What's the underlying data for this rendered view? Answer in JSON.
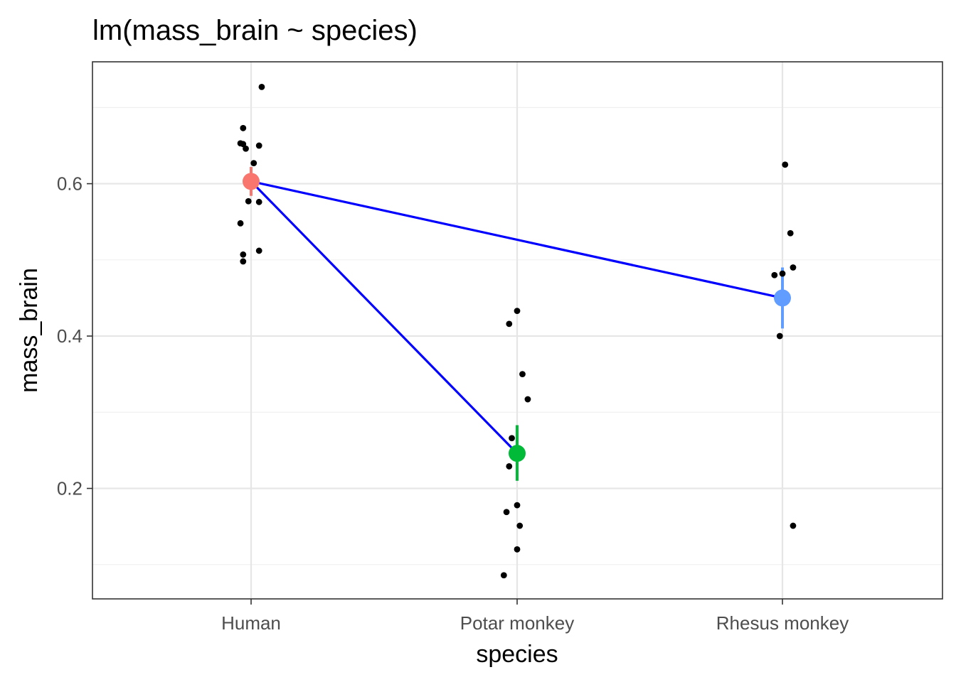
{
  "chart_data": {
    "type": "scatter",
    "title": "lm(mass_brain ~ species)",
    "xlabel": "species",
    "ylabel": "mass_brain",
    "categories": [
      "Human",
      "Potar monkey",
      "Rhesus monkey"
    ],
    "ylim": [
      0.055,
      0.76
    ],
    "yticks": [
      0.2,
      0.4,
      0.6
    ],
    "ytick_labels": [
      "0.2",
      "0.4",
      "0.6"
    ],
    "grid": true,
    "theme": "bw",
    "colors": {
      "Human": "#F8766D",
      "Potar monkey": "#00BA38",
      "Rhesus monkey": "#619CFF",
      "line": "#0000FF",
      "points": "#000000"
    },
    "observations": [
      {
        "category": "Human",
        "jitter": 0.04,
        "y": 0.727
      },
      {
        "category": "Human",
        "jitter": -0.03,
        "y": 0.673
      },
      {
        "category": "Human",
        "jitter": -0.04,
        "y": 0.653
      },
      {
        "category": "Human",
        "jitter": -0.03,
        "y": 0.652
      },
      {
        "category": "Human",
        "jitter": -0.02,
        "y": 0.646
      },
      {
        "category": "Human",
        "jitter": 0.03,
        "y": 0.65
      },
      {
        "category": "Human",
        "jitter": 0.01,
        "y": 0.627
      },
      {
        "category": "Human",
        "jitter": -0.01,
        "y": 0.577
      },
      {
        "category": "Human",
        "jitter": 0.03,
        "y": 0.576
      },
      {
        "category": "Human",
        "jitter": -0.04,
        "y": 0.548
      },
      {
        "category": "Human",
        "jitter": 0.03,
        "y": 0.512
      },
      {
        "category": "Human",
        "jitter": -0.03,
        "y": 0.507
      },
      {
        "category": "Human",
        "jitter": -0.03,
        "y": 0.498
      },
      {
        "category": "Potar monkey",
        "jitter": 0.0,
        "y": 0.433
      },
      {
        "category": "Potar monkey",
        "jitter": -0.03,
        "y": 0.416
      },
      {
        "category": "Potar monkey",
        "jitter": 0.02,
        "y": 0.35
      },
      {
        "category": "Potar monkey",
        "jitter": 0.04,
        "y": 0.317
      },
      {
        "category": "Potar monkey",
        "jitter": -0.02,
        "y": 0.266
      },
      {
        "category": "Potar monkey",
        "jitter": -0.03,
        "y": 0.229
      },
      {
        "category": "Potar monkey",
        "jitter": 0.0,
        "y": 0.178
      },
      {
        "category": "Potar monkey",
        "jitter": -0.04,
        "y": 0.169
      },
      {
        "category": "Potar monkey",
        "jitter": 0.01,
        "y": 0.151
      },
      {
        "category": "Potar monkey",
        "jitter": 0.0,
        "y": 0.12
      },
      {
        "category": "Potar monkey",
        "jitter": -0.05,
        "y": 0.086
      },
      {
        "category": "Rhesus monkey",
        "jitter": 0.01,
        "y": 0.625
      },
      {
        "category": "Rhesus monkey",
        "jitter": 0.03,
        "y": 0.535
      },
      {
        "category": "Rhesus monkey",
        "jitter": 0.04,
        "y": 0.49
      },
      {
        "category": "Rhesus monkey",
        "jitter": -0.03,
        "y": 0.48
      },
      {
        "category": "Rhesus monkey",
        "jitter": 0.0,
        "y": 0.482
      },
      {
        "category": "Rhesus monkey",
        "jitter": -0.01,
        "y": 0.4
      },
      {
        "category": "Rhesus monkey",
        "jitter": 0.04,
        "y": 0.151
      }
    ],
    "estimates": [
      {
        "category": "Human",
        "mean": 0.603,
        "lower": 0.584,
        "upper": 0.622
      },
      {
        "category": "Potar monkey",
        "mean": 0.246,
        "lower": 0.21,
        "upper": 0.283
      },
      {
        "category": "Rhesus monkey",
        "mean": 0.45,
        "lower": 0.41,
        "upper": 0.49
      }
    ],
    "comparisons": [
      {
        "from": "Human",
        "to": "Potar monkey"
      },
      {
        "from": "Human",
        "to": "Rhesus monkey"
      }
    ]
  }
}
